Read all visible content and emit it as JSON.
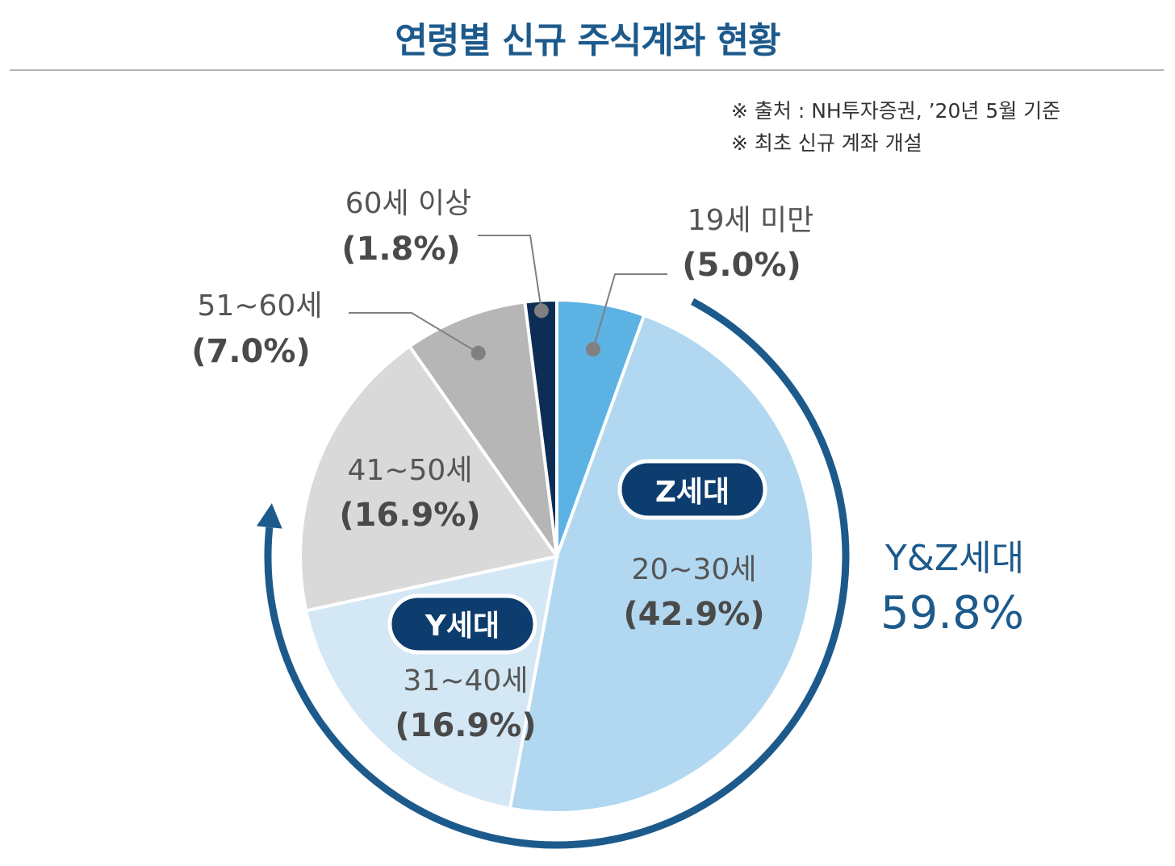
{
  "title": "연령별 신규 주식계좌 현황",
  "notes": [
    "※ 출처 : NH투자증권, ’20년 5월 기준",
    "※ 최초 신규 계좌 개설"
  ],
  "chart_data": {
    "type": "pie",
    "slices": [
      {
        "name": "19세 미만",
        "value": 5.0,
        "label": "(5.0%)",
        "color": "#5bb2e3"
      },
      {
        "name": "20~30세",
        "value": 42.9,
        "label": "(42.9%)",
        "color": "#b1d8f0",
        "tag": "Z세대"
      },
      {
        "name": "31~40세",
        "value": 16.9,
        "label": "(16.9%)",
        "color": "#d3e7f5",
        "tag": "Y세대"
      },
      {
        "name": "41~50세",
        "value": 16.9,
        "label": "(16.9%)",
        "color": "#d9d9d9"
      },
      {
        "name": "51~60세",
        "value": 7.0,
        "label": "(7.0%)",
        "color": "#b6b6b6"
      },
      {
        "name": "60세 이상",
        "value": 1.8,
        "label": "(1.8%)",
        "color": "#0e2d55"
      }
    ],
    "group": {
      "name": "Y&Z세대",
      "value": "59.8%"
    }
  },
  "colors": {
    "title": "#1d5a8c",
    "pill": "#0d3d6e",
    "arc": "#1d5a8c"
  }
}
